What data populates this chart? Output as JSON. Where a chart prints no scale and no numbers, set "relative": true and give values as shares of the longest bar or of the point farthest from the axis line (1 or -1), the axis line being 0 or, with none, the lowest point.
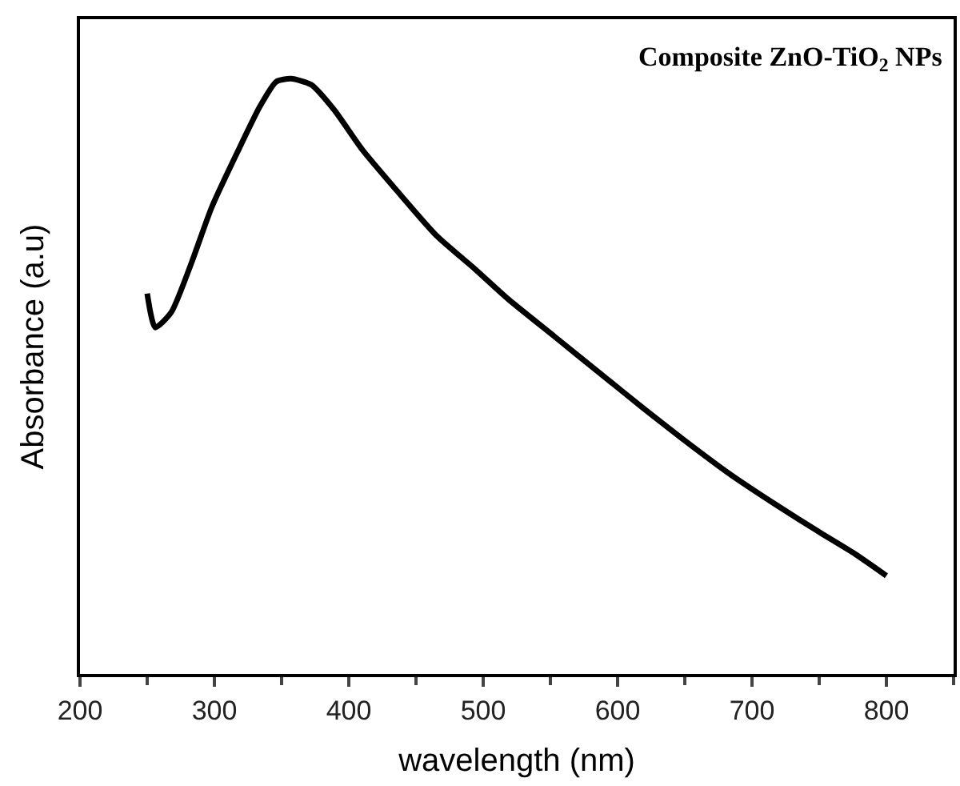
{
  "chart_data": {
    "type": "line",
    "relative": true,
    "xlabel": "wavelength (nm)",
    "ylabel": "Absorbance (a.u)",
    "annotations": [
      "Composite ZnO-TiO$_{2}$ NPs"
    ],
    "xlim": [
      200,
      850
    ],
    "xticks": [
      200,
      300,
      400,
      500,
      600,
      700,
      800
    ],
    "marker": "none",
    "line_style": "solid",
    "series": [
      {
        "color": "#000000",
        "x": [
          250,
          256,
          268,
          283,
          298,
          317,
          334,
          346,
          357,
          372,
          389,
          410,
          435,
          465,
          494,
          519,
          553,
          587,
          621,
          650,
          684,
          718,
          751,
          777,
          800
        ],
        "values": [
          0.639,
          0.582,
          0.608,
          0.691,
          0.784,
          0.876,
          0.954,
          0.995,
          1.0,
          0.99,
          0.948,
          0.881,
          0.814,
          0.737,
          0.68,
          0.629,
          0.567,
          0.505,
          0.443,
          0.392,
          0.335,
          0.284,
          0.237,
          0.201,
          0.165
        ]
      }
    ]
  }
}
